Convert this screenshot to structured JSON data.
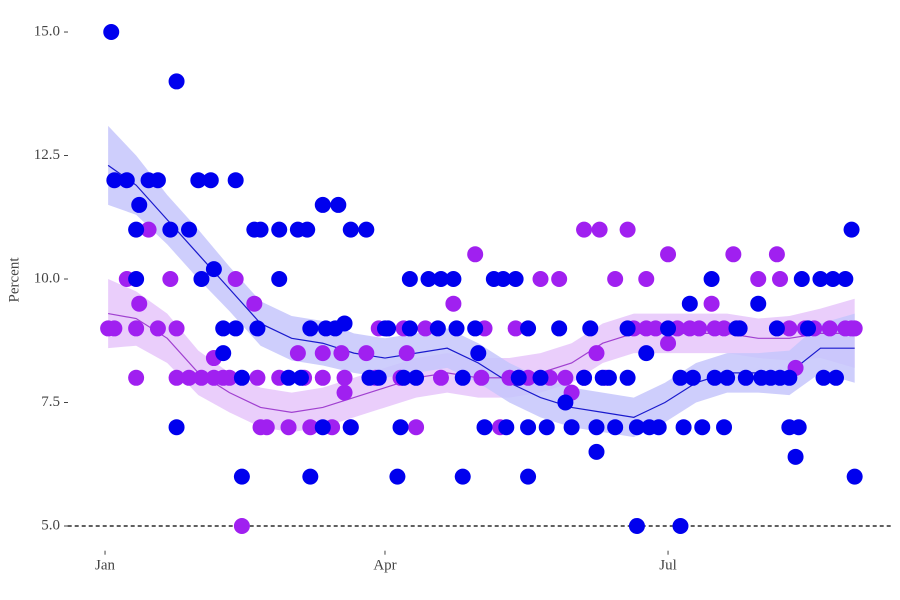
{
  "chart_data": {
    "type": "scatter",
    "ylabel": "Percent",
    "xlim": [
      -12,
      253
    ],
    "ylim": [
      4.5,
      15.3
    ],
    "xticks": [
      {
        "value": 0,
        "label": "Jan"
      },
      {
        "value": 90,
        "label": "Apr"
      },
      {
        "value": 181,
        "label": "Jul"
      }
    ],
    "yticks": [
      {
        "value": 5,
        "label": "5.0"
      },
      {
        "value": 7.5,
        "label": "7.5"
      },
      {
        "value": 10,
        "label": "10.0"
      },
      {
        "value": 12.5,
        "label": "12.5"
      },
      {
        "value": 15,
        "label": "15.0"
      }
    ],
    "reference_line": 5,
    "series": [
      {
        "color": "#a020f0",
        "x": [
          1,
          3,
          7,
          10,
          10,
          11,
          14,
          17,
          21,
          23,
          23,
          27,
          31,
          35,
          35,
          38,
          40,
          42,
          44,
          48,
          49,
          50,
          52,
          56,
          59,
          62,
          64,
          66,
          70,
          70,
          73,
          76,
          77,
          77,
          79,
          84,
          87,
          88,
          95,
          96,
          97,
          100,
          103,
          108,
          112,
          119,
          121,
          122,
          127,
          130,
          132,
          133,
          136,
          140,
          143,
          146,
          148,
          150,
          154,
          154,
          158,
          159,
          161,
          164,
          168,
          170,
          174,
          174,
          177,
          181,
          181,
          184,
          188,
          191,
          195,
          196,
          199,
          202,
          204,
          210,
          216,
          217,
          220,
          222,
          225,
          228,
          233,
          238,
          240,
          241
        ],
        "values": [
          9,
          9,
          10,
          9,
          8,
          9.5,
          11,
          9,
          10,
          9,
          8,
          8,
          8,
          8.4,
          8,
          8,
          8,
          10,
          5,
          9.5,
          8,
          7,
          7,
          8,
          7,
          8.5,
          8,
          7,
          8,
          8.5,
          7,
          8.5,
          7.7,
          8,
          7,
          8.5,
          8,
          9,
          8,
          9,
          8.5,
          7,
          9,
          8,
          9.5,
          10.5,
          8,
          9,
          7,
          8,
          9,
          8,
          8,
          10,
          8,
          10,
          8,
          7.7,
          11,
          8,
          8.5,
          11,
          8,
          10,
          11,
          9,
          10,
          9,
          9,
          10.5,
          8.7,
          9,
          9,
          9,
          9.5,
          9,
          9,
          10.5,
          9,
          10,
          10.5,
          10,
          9,
          8.2,
          9,
          9,
          9,
          9,
          9,
          9
        ],
        "trend": {
          "color": "#a040d0",
          "band_color": "#e6c6fa",
          "x": [
            1,
            10,
            20,
            30,
            40,
            50,
            60,
            70,
            80,
            90,
            100,
            110,
            120,
            130,
            140,
            150,
            160,
            170,
            180,
            190,
            200,
            210,
            220,
            230,
            241
          ],
          "values": [
            9.3,
            9.2,
            8.8,
            8.1,
            7.7,
            7.4,
            7.3,
            7.4,
            7.6,
            7.8,
            8.0,
            8.1,
            8.0,
            8.0,
            8.1,
            8.3,
            8.7,
            8.9,
            8.9,
            8.9,
            8.9,
            8.8,
            8.8,
            8.9,
            8.9
          ],
          "lower": [
            8.6,
            8.65,
            8.3,
            7.65,
            7.3,
            7.0,
            6.9,
            7.0,
            7.2,
            7.4,
            7.6,
            7.7,
            7.6,
            7.6,
            7.7,
            7.9,
            8.3,
            8.5,
            8.5,
            8.5,
            8.5,
            8.4,
            8.35,
            8.4,
            8.2
          ],
          "upper": [
            10.0,
            9.75,
            9.3,
            8.55,
            8.1,
            7.8,
            7.7,
            7.8,
            8.0,
            8.2,
            8.4,
            8.5,
            8.4,
            8.4,
            8.5,
            8.7,
            9.1,
            9.3,
            9.3,
            9.3,
            9.3,
            9.2,
            9.25,
            9.4,
            9.6
          ]
        }
      },
      {
        "color": "#0000ee",
        "x": [
          2,
          3,
          7,
          10,
          11,
          10,
          14,
          17,
          21,
          23,
          23,
          27,
          30,
          31,
          34,
          35,
          38,
          38,
          42,
          42,
          44,
          44,
          48,
          50,
          49,
          56,
          56,
          59,
          62,
          63,
          65,
          66,
          66,
          70,
          70,
          71,
          74,
          75,
          77,
          79,
          79,
          84,
          85,
          88,
          90,
          91,
          94,
          95,
          96,
          98,
          98,
          100,
          104,
          107,
          108,
          112,
          113,
          115,
          115,
          119,
          120,
          122,
          125,
          128,
          129,
          132,
          133,
          136,
          136,
          136,
          140,
          142,
          146,
          148,
          150,
          154,
          156,
          158,
          158,
          160,
          162,
          164,
          168,
          168,
          171,
          171,
          174,
          175,
          178,
          181,
          185,
          185,
          186,
          188,
          189,
          192,
          195,
          196,
          199,
          200,
          203,
          204,
          206,
          210,
          211,
          214,
          216,
          217,
          220,
          220,
          222,
          223,
          224,
          226,
          230,
          231,
          234,
          235,
          238,
          240,
          241
        ],
        "values": [
          15,
          12,
          12,
          11,
          11.5,
          10,
          12,
          12,
          11,
          14,
          7,
          11,
          12,
          10,
          12,
          10.2,
          8.5,
          9,
          12,
          9,
          8,
          6,
          11,
          11,
          9,
          11,
          10,
          8,
          11,
          8,
          11,
          6,
          9,
          11.5,
          7,
          9,
          9,
          11.5,
          9.1,
          11,
          7,
          11,
          8,
          8,
          9,
          9,
          6,
          7,
          8,
          10,
          9,
          8,
          10,
          9,
          10,
          10,
          9,
          8,
          6,
          9,
          8.5,
          7,
          10,
          10,
          7,
          10,
          8,
          9,
          6,
          7,
          8,
          7,
          9,
          7.5,
          7,
          8,
          9,
          7,
          6.5,
          8,
          8,
          7,
          8,
          9,
          5,
          7,
          8.5,
          7,
          7,
          9,
          5,
          8,
          7,
          9.5,
          8,
          7,
          10,
          8,
          7,
          8,
          9,
          9,
          8,
          9.5,
          8,
          8,
          9,
          8,
          8,
          7,
          6.4,
          7,
          10,
          9,
          10,
          8,
          10,
          8,
          10,
          11,
          6
        ],
        "trend": {
          "color": "#1a1acd",
          "band_color": "#c6c6fb",
          "x": [
            1,
            10,
            20,
            30,
            40,
            50,
            60,
            70,
            80,
            90,
            100,
            110,
            120,
            130,
            140,
            150,
            160,
            170,
            180,
            190,
            200,
            210,
            220,
            230,
            241
          ],
          "values": [
            12.3,
            11.9,
            11.2,
            10.5,
            9.8,
            9.1,
            8.8,
            8.7,
            8.5,
            8.4,
            8.5,
            8.6,
            8.3,
            7.9,
            7.6,
            7.4,
            7.3,
            7.2,
            7.5,
            7.9,
            8.1,
            8.1,
            8.1,
            8.6,
            8.6
          ],
          "lower": [
            11.5,
            11.3,
            10.7,
            10.0,
            9.35,
            8.65,
            8.35,
            8.25,
            8.1,
            8.0,
            8.1,
            8.2,
            7.9,
            7.5,
            7.2,
            7.0,
            6.9,
            6.8,
            7.1,
            7.5,
            7.7,
            7.7,
            7.65,
            8.1,
            7.9
          ],
          "upper": [
            13.1,
            12.5,
            11.7,
            11.0,
            10.25,
            9.55,
            9.25,
            9.15,
            8.9,
            8.8,
            8.9,
            9.0,
            8.7,
            8.3,
            8.0,
            7.8,
            7.7,
            7.6,
            7.9,
            8.3,
            8.5,
            8.5,
            8.55,
            9.1,
            9.3
          ]
        }
      }
    ]
  }
}
